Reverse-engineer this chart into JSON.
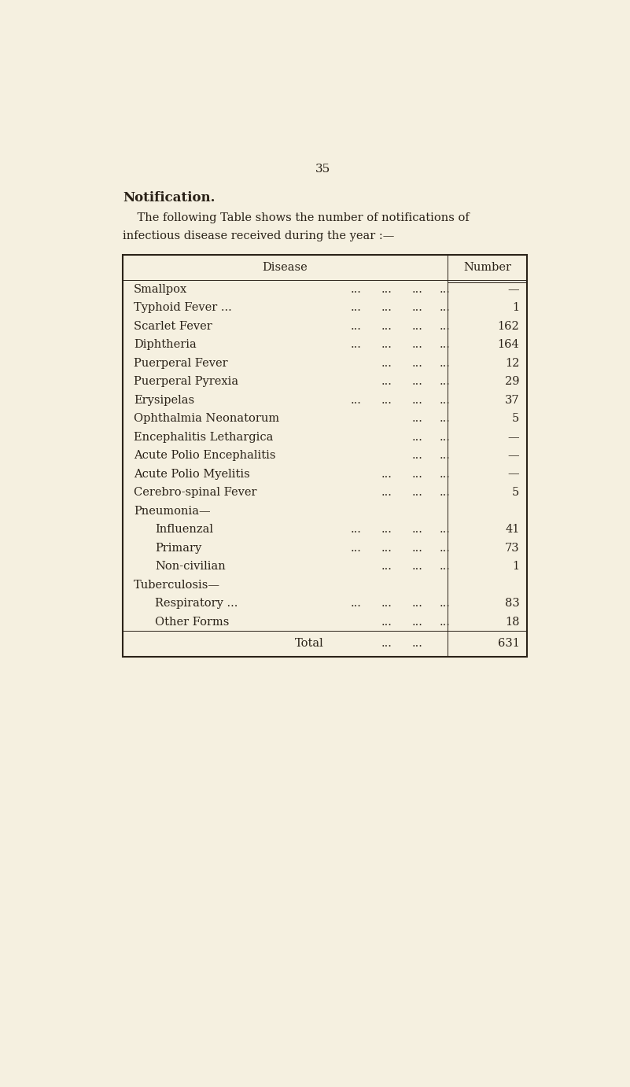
{
  "page_number": "35",
  "section_title": "Notification.",
  "intro_line1": "    The following Table shows the number of notifications of",
  "intro_line2": "infectious disease received during the year :—",
  "col_disease": "Disease",
  "col_number": "Number",
  "rows": [
    {
      "disease": "Smallpox",
      "extra_dots": "...",
      "mid_dots": [
        "...",
        "...",
        "...",
        "..."
      ],
      "number": "—",
      "indent": 0,
      "has_number": true
    },
    {
      "disease": "Typhoid Fever ...",
      "extra_dots": "",
      "mid_dots": [
        "...",
        "...",
        "...",
        "..."
      ],
      "number": "1",
      "indent": 0,
      "has_number": true
    },
    {
      "disease": "Scarlet Fever",
      "extra_dots": "...",
      "mid_dots": [
        "...",
        "...",
        "...",
        "..."
      ],
      "number": "162",
      "indent": 0,
      "has_number": true
    },
    {
      "disease": "Diphtheria",
      "extra_dots": "...",
      "mid_dots": [
        "...",
        "...",
        "...",
        "..."
      ],
      "number": "164",
      "indent": 0,
      "has_number": true
    },
    {
      "disease": "Puerperal Fever",
      "extra_dots": "",
      "mid_dots": [
        "...",
        "...",
        "..."
      ],
      "number": "12",
      "indent": 0,
      "has_number": true
    },
    {
      "disease": "Puerperal Pyrexia",
      "extra_dots": "",
      "mid_dots": [
        "...",
        "...",
        "..."
      ],
      "number": "29",
      "indent": 0,
      "has_number": true
    },
    {
      "disease": "Erysipelas",
      "extra_dots": "...",
      "mid_dots": [
        "...",
        "...",
        "...",
        "..."
      ],
      "number": "37",
      "indent": 0,
      "has_number": true
    },
    {
      "disease": "Ophthalmia Neonatorum",
      "extra_dots": "",
      "mid_dots": [
        "...",
        "..."
      ],
      "number": "5",
      "indent": 0,
      "has_number": true
    },
    {
      "disease": "Encephalitis Lethargica",
      "extra_dots": "",
      "mid_dots": [
        "...",
        "..."
      ],
      "number": "—",
      "indent": 0,
      "has_number": true
    },
    {
      "disease": "Acute Polio Encephalitis",
      "extra_dots": "",
      "mid_dots": [
        "...",
        "..."
      ],
      "number": "—",
      "indent": 0,
      "has_number": true
    },
    {
      "disease": "Acute Polio Myelitis",
      "extra_dots": "...",
      "mid_dots": [
        "...",
        "...",
        "..."
      ],
      "number": "—",
      "indent": 0,
      "has_number": true
    },
    {
      "disease": "Cerebro-spinal Fever",
      "extra_dots": "",
      "mid_dots": [
        "...",
        "...",
        "..."
      ],
      "number": "5",
      "indent": 0,
      "has_number": true
    },
    {
      "disease": "Pneumonia—",
      "extra_dots": "",
      "mid_dots": [],
      "number": "",
      "indent": 0,
      "has_number": false
    },
    {
      "disease": "Influenzal",
      "extra_dots": "...",
      "mid_dots": [
        "...",
        "...",
        "...",
        "..."
      ],
      "number": "41",
      "indent": 1,
      "has_number": true
    },
    {
      "disease": "Primary",
      "extra_dots": "...",
      "mid_dots": [
        "...",
        "...",
        "...",
        "..."
      ],
      "number": "73",
      "indent": 1,
      "has_number": true
    },
    {
      "disease": "Non-civilian",
      "extra_dots": "",
      "mid_dots": [
        "...",
        "...",
        "..."
      ],
      "number": "1",
      "indent": 1,
      "has_number": true
    },
    {
      "disease": "Tuberculosis—",
      "extra_dots": "",
      "mid_dots": [],
      "number": "",
      "indent": 0,
      "has_number": false
    },
    {
      "disease": "Respiratory ...",
      "extra_dots": "",
      "mid_dots": [
        "...",
        "...",
        "...",
        "..."
      ],
      "number": "83",
      "indent": 1,
      "has_number": true
    },
    {
      "disease": "Other Forms",
      "extra_dots": "...",
      "mid_dots": [
        "...",
        "...",
        "..."
      ],
      "number": "18",
      "indent": 1,
      "has_number": true
    }
  ],
  "total_label": "Total",
  "total_dots": [
    "...",
    "..."
  ],
  "total_value": "631",
  "bg_color": "#f5f0e0",
  "text_color": "#2a2218",
  "font_size_page": 11,
  "font_size_title": 12,
  "font_size_body": 10.5,
  "font_size_header": 10.5
}
